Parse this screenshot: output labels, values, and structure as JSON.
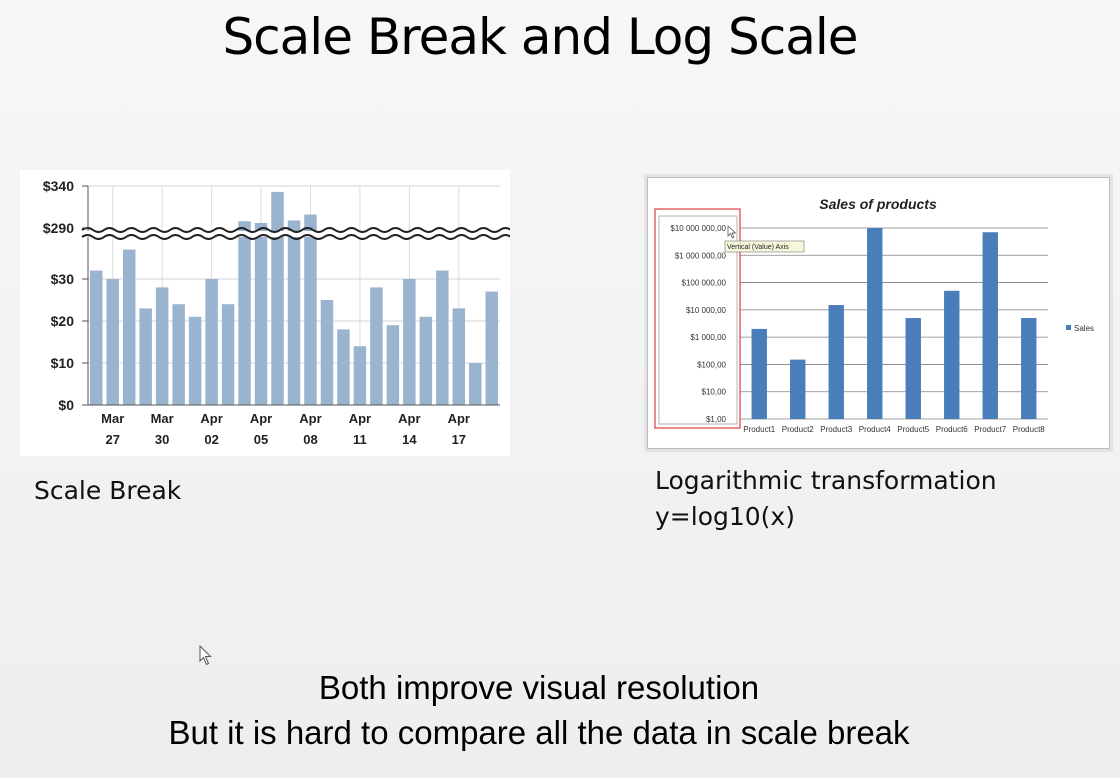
{
  "slide": {
    "title": "Scale Break and Log Scale",
    "caption_left": "Scale Break",
    "caption_right_line1": "Logarithmic transformation",
    "caption_right_line2": "y=log10(x)",
    "bottom_line1": "Both improve visual resolution",
    "bottom_line2": "But it is hard to compare all the data in scale break"
  },
  "chart_data": [
    {
      "type": "bar",
      "title": "",
      "scale_break": {
        "lower_max": 40,
        "upper_min": 280,
        "upper_max": 340
      },
      "y_ticks": [
        "$0",
        "$10",
        "$20",
        "$30",
        "$290",
        "$340"
      ],
      "y_tick_values": [
        0,
        10,
        20,
        30,
        290,
        340
      ],
      "x_labels": [
        {
          "month": "Mar",
          "day": "27"
        },
        {
          "month": "Mar",
          "day": "30"
        },
        {
          "month": "Apr",
          "day": "02"
        },
        {
          "month": "Apr",
          "day": "05"
        },
        {
          "month": "Apr",
          "day": "08"
        },
        {
          "month": "Apr",
          "day": "11"
        },
        {
          "month": "Apr",
          "day": "14"
        },
        {
          "month": "Apr",
          "day": "17"
        }
      ],
      "values": [
        32,
        30,
        37,
        23,
        28,
        24,
        21,
        30,
        24,
        298,
        296,
        333,
        299,
        306,
        25,
        18,
        14,
        28,
        19,
        30,
        21,
        32,
        23,
        10,
        27
      ],
      "bar_color": "#9ab4cf",
      "grid": true
    },
    {
      "type": "bar",
      "title": "Sales of products",
      "y_scale": "log",
      "y_ticks": [
        "$1,00",
        "$10,00",
        "$100,00",
        "$1 000,00",
        "$10 000,00",
        "$100 000,00",
        "$1 000 000,00",
        "$10 000 000,00"
      ],
      "categories": [
        "Product1",
        "Product2",
        "Product3",
        "Product4",
        "Product5",
        "Product6",
        "Product7",
        "Product8"
      ],
      "series": [
        {
          "name": "Sales",
          "values": [
            2000,
            150,
            15000,
            10000000,
            5000,
            50000,
            7000000,
            5000
          ]
        }
      ],
      "bar_color": "#4a7ebb",
      "legend": "right",
      "tooltip": "Vertical (Value) Axis",
      "selection_color": "#e03c3c"
    }
  ]
}
